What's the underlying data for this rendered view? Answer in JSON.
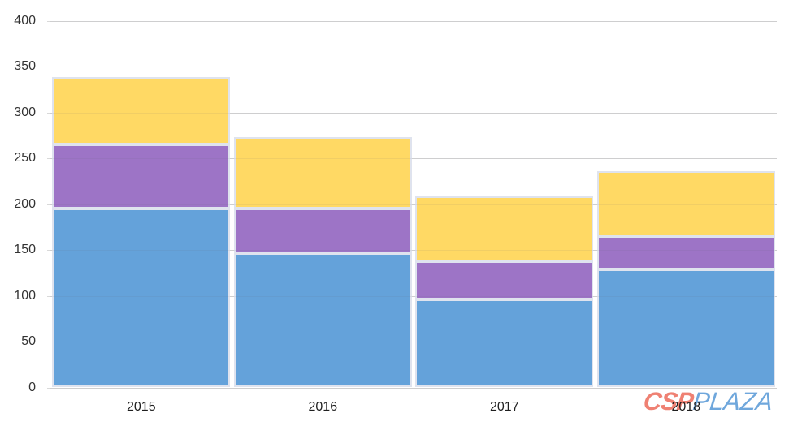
{
  "chart_data": {
    "type": "bar",
    "stacked": true,
    "title": "",
    "xlabel": "",
    "ylabel": "",
    "categories": [
      "2015",
      "2016",
      "2017",
      "2018"
    ],
    "series": [
      {
        "name": "bottom-blue-segment",
        "color": "#64A2DA",
        "values": [
          195,
          147,
          96,
          129
        ]
      },
      {
        "name": "middle-purple-segment",
        "color": "#9D74C6",
        "values": [
          70,
          48,
          42,
          36
        ]
      },
      {
        "name": "top-yellow-segment",
        "color": "#FFD964",
        "values": [
          74,
          78,
          71,
          71
        ]
      }
    ],
    "stack_totals": [
      339,
      273,
      209,
      236
    ],
    "ylim": [
      0,
      400
    ],
    "ytick_step": 50,
    "yticks": [
      "0",
      "50",
      "100",
      "150",
      "200",
      "250",
      "300",
      "350",
      "400"
    ],
    "grid": true,
    "legend": "none"
  },
  "watermark": {
    "csp": "CSP",
    "plaza": "PLAZA",
    "csp_color": "#EF8173",
    "plaza_color": "#6FA7DC"
  },
  "colors": {
    "gridline": "#D9D9D9",
    "tick_text": "#333333",
    "segment_border": "#DFE3EE"
  }
}
